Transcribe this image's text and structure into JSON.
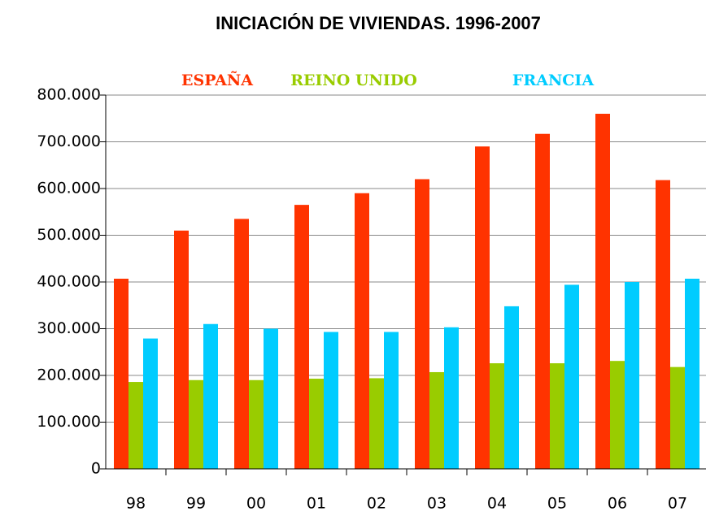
{
  "chart_data": {
    "type": "bar",
    "title": "INICIACIÓN DE VIVIENDAS. 1996-2007",
    "categories": [
      "98",
      "99",
      "00",
      "01",
      "02",
      "03",
      "04",
      "05",
      "06",
      "07"
    ],
    "series": [
      {
        "name": "ESPAÑA",
        "color": "#ff3300",
        "values": [
          407000,
          510000,
          535000,
          565000,
          590000,
          620000,
          690000,
          717000,
          760000,
          618000
        ]
      },
      {
        "name": "REINO UNIDO",
        "color": "#99cc00",
        "values": [
          186000,
          190000,
          190000,
          193000,
          194000,
          207000,
          226000,
          226000,
          231000,
          218000
        ]
      },
      {
        "name": "FRANCIA",
        "color": "#00ccff",
        "values": [
          279000,
          310000,
          300000,
          293000,
          293000,
          303000,
          348000,
          394000,
          400000,
          407000
        ]
      }
    ],
    "ylim": [
      0,
      800000
    ],
    "yticks": [
      0,
      {
        "value": 100000,
        "label": "100.000"
      },
      {
        "value": 200000,
        "label": "200.000"
      },
      {
        "value": 300000,
        "label": "300.000"
      },
      {
        "value": 400000,
        "label": "400.000"
      },
      {
        "value": 500000,
        "label": "500.000"
      },
      {
        "value": 600000,
        "label": "600.000"
      },
      {
        "value": 700000,
        "label": "700.000"
      },
      {
        "value": 800000,
        "label": "800.000"
      }
    ],
    "grid": true
  }
}
